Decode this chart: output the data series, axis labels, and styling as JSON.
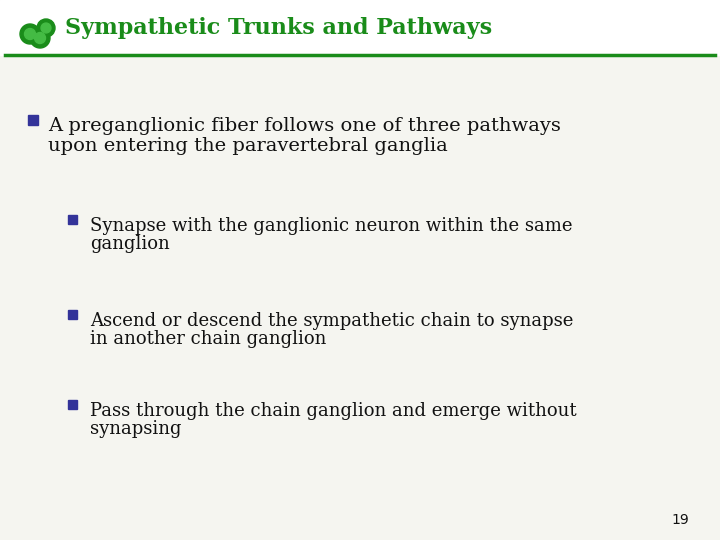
{
  "title": "Sympathetic Trunks and Pathways",
  "title_color": "#1a8c1a",
  "title_fontsize": 16,
  "header_line_color": "#1a8c1a",
  "background_color": "#f5f5f0",
  "bullet1_line1": "A preganglionic fiber follows one of three pathways",
  "bullet1_line2": "upon entering the paravertebral ganglia",
  "bullet2_line1": "Synapse with the ganglionic neuron within the same",
  "bullet2_line2": "ganglion",
  "bullet3_line1": "Ascend or descend the sympathetic chain to synapse",
  "bullet3_line2": "in another chain ganglion",
  "bullet4_line1": "Pass through the chain ganglion and emerge without",
  "bullet4_line2": "synapsing",
  "page_number": "19",
  "text_color": "#111111",
  "bullet_color": "#333399",
  "main_fontsize": 14,
  "sub_fontsize": 13,
  "page_fontsize": 10
}
